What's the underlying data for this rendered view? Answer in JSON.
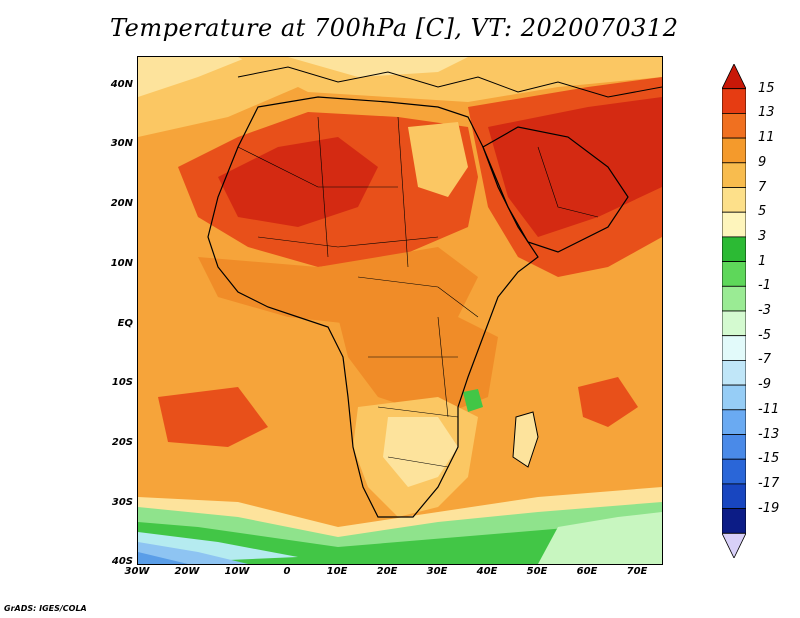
{
  "title": "Temperature at 700hPa [C], VT: 2020070312",
  "credit": "GrADS: IGES/COLA",
  "map": {
    "lat_labels": [
      "40N",
      "30N",
      "20N",
      "10N",
      "EQ",
      "10S",
      "20S",
      "30S",
      "40S"
    ],
    "lon_labels": [
      "30W",
      "20W",
      "10W",
      "0",
      "10E",
      "20E",
      "30E",
      "40E",
      "50E",
      "60E",
      "70E"
    ],
    "lat_range": [
      -40,
      45
    ],
    "lon_range": [
      -30,
      75
    ],
    "ocean_color": "#f6a43a",
    "colors": {
      "hot": "#e8501a",
      "very_hot": "#d42a12",
      "warm": "#fbc763",
      "pale": "#fde39c",
      "mild": "#f08c28",
      "green": "#42c646",
      "light_green": "#8fe38c",
      "pale_green": "#c8f6c0",
      "cyan": "#b5ebf0",
      "blue": "#8ec4f2",
      "deep_blue": "#5a9ee8"
    }
  },
  "colorbar": {
    "labels": [
      "15",
      "13",
      "11",
      "9",
      "7",
      "5",
      "3",
      "1",
      "-1",
      "-3",
      "-5",
      "-7",
      "-9",
      "-11",
      "-13",
      "-15",
      "-17",
      "-19"
    ],
    "colors": [
      "#c81808",
      "#e63c12",
      "#f07020",
      "#f49a2c",
      "#f8bc4e",
      "#fde08a",
      "#fef5bc",
      "#2cba34",
      "#5ed75a",
      "#9aeb94",
      "#d4fad0",
      "#e2fafa",
      "#c0e6f8",
      "#96cdf6",
      "#6aaaf2",
      "#4a8ae8",
      "#2a66d8",
      "#1846c0",
      "#0c1c86",
      "#d8d0f8"
    ]
  }
}
